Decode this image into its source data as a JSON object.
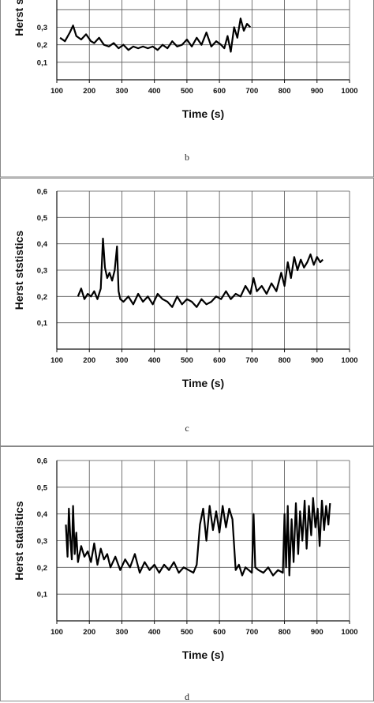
{
  "chart_data": [
    {
      "type": "line",
      "panel_label": "b",
      "xlabel": "Time (s)",
      "ylabel": "Herst s",
      "xlim": [
        100,
        1000
      ],
      "ylim": [
        0,
        0.6
      ],
      "grid": true,
      "x_ticks": [
        "100",
        "200",
        "300",
        "400",
        "500",
        "600",
        "700",
        "800",
        "900",
        "1000"
      ],
      "y_ticks": [
        "0,1",
        "0,2",
        "0,3"
      ],
      "series": [
        {
          "color": "#000000",
          "x": [
            110,
            125,
            140,
            150,
            160,
            175,
            190,
            205,
            215,
            230,
            245,
            260,
            275,
            290,
            305,
            320,
            335,
            350,
            365,
            380,
            395,
            410,
            425,
            440,
            455,
            470,
            485,
            500,
            515,
            530,
            545,
            560,
            575,
            590,
            605,
            615,
            625,
            635,
            645,
            655,
            665,
            675,
            685,
            695
          ],
          "y": [
            0.24,
            0.22,
            0.27,
            0.31,
            0.25,
            0.23,
            0.26,
            0.22,
            0.21,
            0.24,
            0.2,
            0.19,
            0.21,
            0.18,
            0.2,
            0.17,
            0.19,
            0.18,
            0.19,
            0.18,
            0.19,
            0.17,
            0.2,
            0.18,
            0.22,
            0.19,
            0.2,
            0.23,
            0.19,
            0.24,
            0.2,
            0.27,
            0.19,
            0.22,
            0.2,
            0.18,
            0.25,
            0.16,
            0.3,
            0.24,
            0.35,
            0.28,
            0.32,
            0.3
          ]
        }
      ]
    },
    {
      "type": "line",
      "panel_label": "c",
      "xlabel": "Time (s)",
      "ylabel": "Herst ststistics",
      "xlim": [
        100,
        1000
      ],
      "ylim": [
        0,
        0.6
      ],
      "grid": true,
      "x_ticks": [
        "100",
        "200",
        "300",
        "400",
        "500",
        "600",
        "700",
        "800",
        "900",
        "1000"
      ],
      "y_ticks": [
        "0,1",
        "0,2",
        "0,3",
        "0,4",
        "0,5",
        "0,6"
      ],
      "series": [
        {
          "color": "#000000",
          "x": [
            165,
            175,
            185,
            195,
            205,
            215,
            225,
            235,
            242,
            248,
            255,
            262,
            270,
            278,
            285,
            290,
            295,
            305,
            320,
            335,
            350,
            365,
            380,
            395,
            410,
            425,
            440,
            455,
            470,
            485,
            500,
            515,
            530,
            545,
            560,
            575,
            590,
            605,
            620,
            635,
            650,
            665,
            680,
            695,
            705,
            715,
            730,
            745,
            760,
            775,
            790,
            800,
            810,
            820,
            830,
            840,
            850,
            860,
            870,
            880,
            890,
            900,
            910,
            918
          ],
          "y": [
            0.2,
            0.23,
            0.19,
            0.21,
            0.2,
            0.22,
            0.19,
            0.23,
            0.42,
            0.31,
            0.27,
            0.29,
            0.26,
            0.3,
            0.39,
            0.22,
            0.19,
            0.18,
            0.2,
            0.17,
            0.21,
            0.18,
            0.2,
            0.17,
            0.21,
            0.19,
            0.18,
            0.16,
            0.2,
            0.17,
            0.19,
            0.18,
            0.16,
            0.19,
            0.17,
            0.18,
            0.2,
            0.19,
            0.22,
            0.19,
            0.21,
            0.2,
            0.24,
            0.21,
            0.27,
            0.22,
            0.24,
            0.21,
            0.25,
            0.22,
            0.29,
            0.24,
            0.33,
            0.27,
            0.35,
            0.3,
            0.34,
            0.31,
            0.33,
            0.36,
            0.32,
            0.35,
            0.33,
            0.34
          ]
        }
      ]
    },
    {
      "type": "line",
      "panel_label": "d",
      "xlabel": "Time (s)",
      "ylabel": "Herst statistics",
      "xlim": [
        100,
        1000
      ],
      "ylim": [
        0,
        0.6
      ],
      "grid": true,
      "x_ticks": [
        "100",
        "200",
        "300",
        "400",
        "500",
        "600",
        "700",
        "800",
        "900",
        "1000"
      ],
      "y_ticks": [
        "0,1",
        "0,2",
        "0,3",
        "0,4",
        "0,5",
        "0,6"
      ],
      "series": [
        {
          "color": "#000000",
          "x": [
            128,
            133,
            137,
            142,
            146,
            150,
            155,
            160,
            165,
            175,
            185,
            195,
            205,
            215,
            225,
            235,
            245,
            255,
            265,
            280,
            295,
            310,
            325,
            340,
            355,
            370,
            385,
            400,
            415,
            430,
            445,
            460,
            475,
            490,
            505,
            520,
            530,
            540,
            550,
            560,
            570,
            580,
            590,
            600,
            610,
            620,
            630,
            640,
            650,
            660,
            670,
            680,
            690,
            700,
            705,
            710,
            720,
            735,
            750,
            765,
            780,
            795,
            800,
            805,
            810,
            815,
            822,
            828,
            835,
            842,
            848,
            855,
            862,
            868,
            875,
            882,
            888,
            895,
            902,
            908,
            915,
            922,
            928,
            935,
            940
          ],
          "y": [
            0.36,
            0.24,
            0.42,
            0.3,
            0.23,
            0.43,
            0.25,
            0.33,
            0.22,
            0.28,
            0.24,
            0.26,
            0.22,
            0.29,
            0.21,
            0.27,
            0.23,
            0.25,
            0.2,
            0.24,
            0.19,
            0.23,
            0.2,
            0.25,
            0.18,
            0.22,
            0.19,
            0.21,
            0.18,
            0.21,
            0.19,
            0.22,
            0.18,
            0.2,
            0.19,
            0.18,
            0.21,
            0.36,
            0.42,
            0.3,
            0.43,
            0.34,
            0.41,
            0.33,
            0.43,
            0.35,
            0.42,
            0.38,
            0.19,
            0.21,
            0.17,
            0.2,
            0.19,
            0.18,
            0.4,
            0.2,
            0.19,
            0.18,
            0.2,
            0.17,
            0.19,
            0.18,
            0.4,
            0.2,
            0.43,
            0.17,
            0.38,
            0.22,
            0.44,
            0.25,
            0.41,
            0.3,
            0.45,
            0.27,
            0.43,
            0.32,
            0.46,
            0.35,
            0.42,
            0.28,
            0.45,
            0.34,
            0.43,
            0.36,
            0.44
          ]
        }
      ]
    }
  ]
}
